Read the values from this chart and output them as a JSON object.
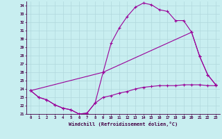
{
  "xlabel": "Windchill (Refroidissement éolien,°C)",
  "background_color": "#c8eef0",
  "grid_color": "#b0d8dc",
  "line_color": "#990099",
  "xlim": [
    -0.5,
    23.5
  ],
  "ylim": [
    21,
    34.5
  ],
  "yticks": [
    21,
    22,
    23,
    24,
    25,
    26,
    27,
    28,
    29,
    30,
    31,
    32,
    33,
    34
  ],
  "xticks": [
    0,
    1,
    2,
    3,
    4,
    5,
    6,
    7,
    8,
    9,
    10,
    11,
    12,
    13,
    14,
    15,
    16,
    17,
    18,
    19,
    20,
    21,
    22,
    23
  ],
  "series1_x": [
    0,
    1,
    2,
    3,
    4,
    5,
    6,
    7,
    8,
    9,
    10,
    11,
    12,
    13,
    14,
    15,
    16,
    17,
    18,
    19,
    20,
    21,
    22,
    23
  ],
  "series1_y": [
    23.8,
    23.0,
    22.7,
    22.1,
    21.7,
    21.5,
    21.0,
    21.1,
    22.3,
    26.0,
    29.5,
    31.3,
    32.7,
    33.8,
    34.3,
    34.1,
    33.5,
    33.3,
    32.2,
    32.2,
    30.8,
    27.9,
    25.7,
    24.5
  ],
  "series2_x": [
    0,
    1,
    2,
    3,
    4,
    5,
    6,
    7,
    8,
    9,
    10,
    11,
    12,
    13,
    14,
    15,
    16,
    17,
    18,
    19,
    20,
    21,
    22,
    23
  ],
  "series2_y": [
    23.8,
    23.0,
    22.7,
    22.1,
    21.7,
    21.5,
    21.0,
    21.1,
    22.3,
    23.0,
    23.2,
    23.5,
    23.7,
    24.0,
    24.2,
    24.3,
    24.4,
    24.4,
    24.4,
    24.5,
    24.5,
    24.5,
    24.4,
    24.4
  ],
  "series3_x": [
    0,
    9,
    20,
    21,
    22,
    23
  ],
  "series3_y": [
    23.8,
    26.0,
    30.8,
    27.9,
    25.7,
    24.5
  ]
}
